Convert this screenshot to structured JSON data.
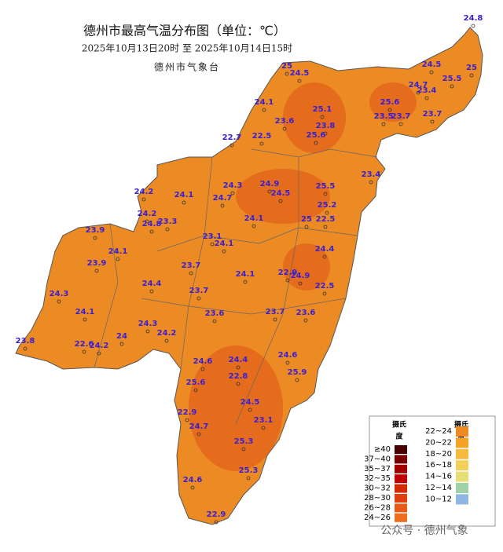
{
  "header": {
    "title": "德州市最高气温分布图（单位：℃）",
    "subtitle": "2025年10月13日20时  至  2025年10月14日15时",
    "issuer": "德州市气象台"
  },
  "stations": [
    24.8,
    25,
    24.5,
    24.5,
    25,
    25.5,
    24.7,
    23.4,
    24.1,
    25.1,
    25.6,
    23.6,
    23.8,
    23.5,
    23.7,
    23.7,
    22.7,
    22.5,
    25.6,
    23.4,
    24.9,
    24.3,
    24.5,
    25.5,
    24.7,
    24.2,
    24.1,
    24.2,
    24.8,
    23.3,
    25.2,
    24.1,
    23.9,
    25,
    22.5,
    23.1,
    24.1,
    24.1,
    24.4,
    23.9,
    23.7,
    22.9,
    24.9,
    24.1,
    24.4,
    22.5,
    23.7,
    24.3,
    24.1,
    23.6,
    23.7,
    23.6,
    24.3,
    24,
    24.2,
    23.8,
    22.6,
    24.2,
    24.6,
    24.4,
    24.6,
    22.8,
    25.9,
    25.6,
    24.5,
    22.9,
    23.1,
    24.7,
    25.3,
    25.3,
    24.6,
    22.9
  ],
  "legend": {
    "unit_line1": "摄氏",
    "unit_line2": "度",
    "left": [
      {
        "label": "≥40",
        "color": "#4a0000"
      },
      {
        "label": "37~40",
        "color": "#7a0000"
      },
      {
        "label": "35~37",
        "color": "#a00000"
      },
      {
        "label": "32~35",
        "color": "#c00000"
      },
      {
        "label": "30~32",
        "color": "#d42a00"
      },
      {
        "label": "28~30",
        "color": "#e04010"
      },
      {
        "label": "26~28",
        "color": "#e85a18"
      },
      {
        "label": "24~26",
        "color": "#ec6e1e"
      }
    ],
    "right": [
      {
        "label": "22~24",
        "color": "#ef8a22"
      },
      {
        "label": "20~22",
        "color": "#f3a226"
      },
      {
        "label": "18~20",
        "color": "#f5bb3e"
      },
      {
        "label": "16~18",
        "color": "#f3d05c"
      },
      {
        "label": "14~16",
        "color": "#e6df78"
      },
      {
        "label": "12~14",
        "color": "#9fd2a6"
      },
      {
        "label": "10~12",
        "color": "#8db7df"
      }
    ]
  },
  "watermark": "公众号 · 德州气象"
}
